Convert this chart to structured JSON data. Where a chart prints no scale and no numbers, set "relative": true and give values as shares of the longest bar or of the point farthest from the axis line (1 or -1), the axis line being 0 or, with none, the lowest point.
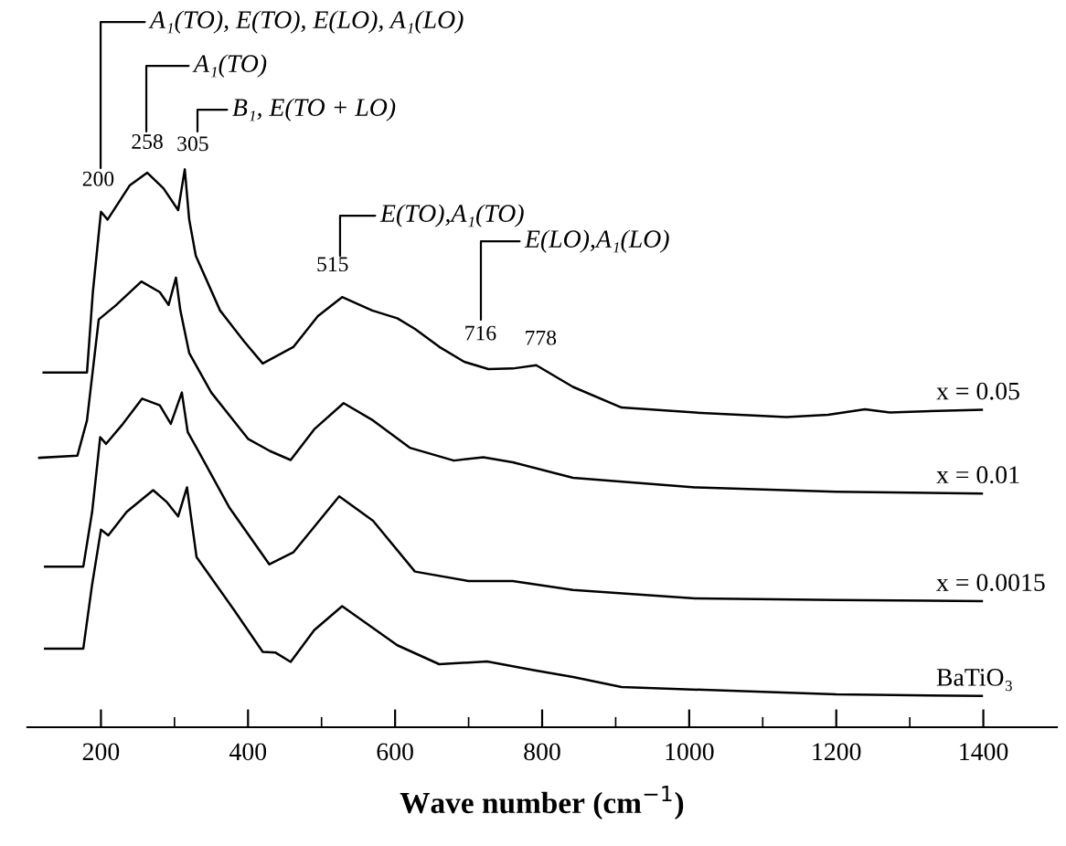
{
  "chart_data": {
    "type": "line",
    "relative": true,
    "xlabel": "Wave number (cm$^{−1}$)",
    "xlim": [
      100,
      1500
    ],
    "xticks": [
      200,
      {
        "value": 300,
        "label": null
      },
      400,
      {
        "value": 500,
        "label": null
      },
      600,
      {
        "value": 700,
        "label": null
      },
      800,
      {
        "value": 900,
        "label": null
      },
      1000,
      {
        "value": 1100,
        "label": null
      },
      1200,
      {
        "value": 1300,
        "label": null
      },
      1400
    ],
    "grid": false,
    "line_style": "solid",
    "marker": "none",
    "series": [
      {
        "name": "x = 0.05",
        "color": "#000000",
        "x": [
          122,
          181,
          189,
          200,
          209,
          239,
          263,
          285,
          305,
          314,
          320,
          329,
          362,
          395,
          420,
          462,
          495,
          528,
          569,
          603,
          627,
          660,
          694,
          727,
          760,
          792,
          842,
          908,
          1008,
          1132,
          1189,
          1239,
          1273,
          1338,
          1398
        ],
        "values": [
          0.636,
          0.636,
          0.78,
          0.924,
          0.91,
          0.971,
          0.994,
          0.966,
          0.927,
          1.0,
          0.91,
          0.845,
          0.747,
          0.691,
          0.652,
          0.682,
          0.737,
          0.771,
          0.747,
          0.733,
          0.714,
          0.682,
          0.655,
          0.642,
          0.643,
          0.649,
          0.61,
          0.573,
          0.564,
          0.556,
          0.56,
          0.57,
          0.564,
          0.567,
          0.569
        ]
      },
      {
        "name": "x = 0.01",
        "color": "#000000",
        "x": [
          116,
          168,
          181,
          197,
          220,
          255,
          280,
          292,
          302,
          308,
          320,
          350,
          400,
          430,
          458,
          490,
          530,
          570,
          620,
          680,
          720,
          760,
          842,
          1008,
          1200,
          1398
        ],
        "values": [
          0.483,
          0.487,
          0.55,
          0.731,
          0.756,
          0.799,
          0.78,
          0.757,
          0.806,
          0.747,
          0.671,
          0.6,
          0.517,
          0.495,
          0.479,
          0.534,
          0.581,
          0.55,
          0.501,
          0.478,
          0.484,
          0.475,
          0.447,
          0.43,
          0.422,
          0.419
        ]
      },
      {
        "name": "x = 0.0015",
        "color": "#000000",
        "x": [
          124,
          176,
          188,
          199,
          207,
          230,
          256,
          280,
          295,
          310,
          318,
          330,
          375,
          429,
          462,
          524,
          570,
          627,
          700,
          760,
          842,
          1008,
          1200,
          1398
        ],
        "values": [
          0.288,
          0.288,
          0.386,
          0.52,
          0.508,
          0.544,
          0.589,
          0.577,
          0.544,
          0.6,
          0.529,
          0.501,
          0.393,
          0.292,
          0.314,
          0.414,
          0.37,
          0.279,
          0.262,
          0.262,
          0.246,
          0.231,
          0.228,
          0.226
        ]
      },
      {
        "name": "BaTiO₃",
        "color": "#000000",
        "x": [
          124,
          176,
          188,
          200,
          210,
          235,
          271,
          290,
          305,
          317,
          330,
          380,
          420,
          437,
          458,
          490,
          528,
          603,
          660,
          725,
          790,
          842,
          908,
          1200,
          1398
        ],
        "values": [
          0.141,
          0.141,
          0.256,
          0.354,
          0.344,
          0.386,
          0.425,
          0.403,
          0.378,
          0.43,
          0.305,
          0.212,
          0.135,
          0.134,
          0.117,
          0.174,
          0.217,
          0.147,
          0.113,
          0.118,
          0.102,
          0.09,
          0.072,
          0.059,
          0.056
        ]
      }
    ],
    "annotations": [
      {
        "text": "200",
        "x": 200,
        "y": 0.924
      },
      {
        "text": "258",
        "x": 258,
        "y": 0.994
      },
      {
        "text": "305",
        "x": 305,
        "y": 1.0
      },
      {
        "text": "515",
        "x": 515,
        "y": 0.771
      },
      {
        "text": "716",
        "x": 716,
        "y": 0.641
      },
      {
        "text": "778",
        "x": 778,
        "y": 0.649
      },
      "A₁(TO), E(TO), E(LO), A₁(LO)",
      "A₁(TO)",
      "B₁, E(TO + LO)",
      "E(TO),A₁(TO)",
      "E(LO),A₁(LO)"
    ]
  }
}
